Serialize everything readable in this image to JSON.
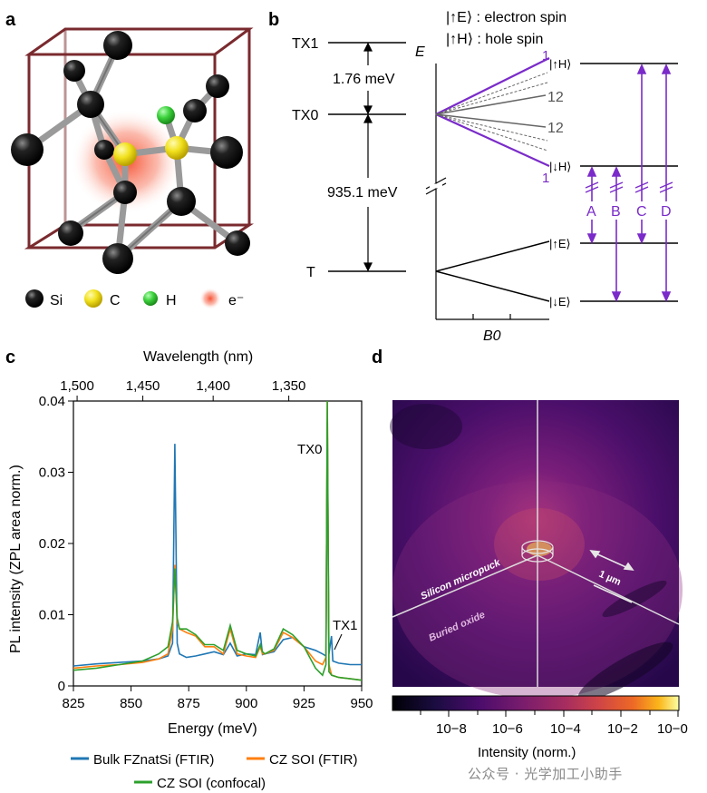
{
  "panels": {
    "a": "a",
    "b": "b",
    "c": "c",
    "d": "d"
  },
  "panel_a": {
    "legend": [
      {
        "label": "Si",
        "color": "#111111"
      },
      {
        "label": "C",
        "color": "#f1e11d"
      },
      {
        "label": "H",
        "color": "#3cd13c"
      },
      {
        "label": "e⁻",
        "color": "#f7694d"
      }
    ]
  },
  "panel_b": {
    "header_electron": "|↑E⟩ : electron spin",
    "header_hole": "|↑H⟩ : hole spin",
    "levels": {
      "tx1": "TX1",
      "tx0": "TX0",
      "t": "T"
    },
    "gap_small": "1.76 meV",
    "gap_large": "935.1 meV",
    "energy_axis": "E",
    "field_axis": "B0",
    "fan_labels": [
      "1",
      "12",
      "12",
      "1"
    ],
    "states": {
      "up_h": "|↑H⟩",
      "down_h": "|↓H⟩",
      "up_e": "|↑E⟩",
      "down_e": "|↓E⟩"
    },
    "transitions": [
      "A",
      "B",
      "C",
      "D"
    ],
    "accent": "#7a2bc9"
  },
  "chart_data": {
    "type": "line",
    "title": "",
    "xlabel": "Energy (meV)",
    "ylabel": "PL intensity (ZPL area norm.)",
    "top_xlabel": "Wavelength (nm)",
    "xlim": [
      825,
      950
    ],
    "ylim": [
      0,
      0.04
    ],
    "x_ticks": [
      "825",
      "850",
      "875",
      "900",
      "925",
      "950"
    ],
    "y_ticks": [
      "0",
      "0.01",
      "0.02",
      "0.03",
      "0.04"
    ],
    "top_ticks": [
      "1,500",
      "1,450",
      "1,400",
      "1,350"
    ],
    "top_tick_positions_meV": [
      826.6,
      855.1,
      885.6,
      918.4
    ],
    "annotations": [
      {
        "text": "TX0",
        "x": 935.1
      },
      {
        "text": "TX1",
        "x": 936.9
      }
    ],
    "series": [
      {
        "name": "Bulk FZnatSi (FTIR)",
        "color": "#1f77b4",
        "x": [
          825,
          835,
          845,
          855,
          862,
          866,
          868,
          869,
          870,
          871,
          874,
          878,
          882,
          886,
          890,
          893,
          896,
          900,
          904,
          906,
          907,
          908,
          912,
          916,
          920,
          925,
          930,
          933,
          934.5,
          935.1,
          935.8,
          936.9,
          937.5,
          940,
          945,
          950
        ],
        "values": [
          0.0028,
          0.0031,
          0.0033,
          0.0035,
          0.0038,
          0.0042,
          0.006,
          0.034,
          0.006,
          0.0045,
          0.004,
          0.0042,
          0.0045,
          0.0048,
          0.0044,
          0.006,
          0.0042,
          0.0045,
          0.0044,
          0.0075,
          0.0044,
          0.0045,
          0.0048,
          0.0065,
          0.0068,
          0.0055,
          0.005,
          0.0045,
          0.0042,
          0.037,
          0.0045,
          0.007,
          0.0035,
          0.0032,
          0.003,
          0.003
        ]
      },
      {
        "name": "CZ SOI (FTIR)",
        "color": "#ff7f0e",
        "x": [
          825,
          835,
          845,
          855,
          862,
          866,
          868,
          869,
          870,
          871,
          874,
          878,
          882,
          886,
          890,
          893,
          896,
          900,
          904,
          906,
          907,
          908,
          912,
          916,
          920,
          925,
          930,
          933,
          934.5,
          935.1,
          935.8,
          937,
          940,
          945,
          950
        ],
        "values": [
          0.0025,
          0.0028,
          0.003,
          0.0033,
          0.0038,
          0.0045,
          0.008,
          0.017,
          0.009,
          0.008,
          0.0075,
          0.007,
          0.0055,
          0.0055,
          0.0045,
          0.008,
          0.0045,
          0.0042,
          0.004,
          0.0055,
          0.0045,
          0.0045,
          0.005,
          0.0075,
          0.0068,
          0.0055,
          0.0035,
          0.003,
          0.004,
          0.04,
          0.003,
          0.0015,
          0.0012,
          0.001,
          0.0008
        ]
      },
      {
        "name": "CZ SOI (confocal)",
        "color": "#2ca02c",
        "x": [
          825,
          835,
          845,
          855,
          862,
          866,
          868,
          869,
          870,
          871,
          874,
          878,
          882,
          886,
          890,
          893,
          896,
          900,
          904,
          906,
          907,
          908,
          912,
          916,
          920,
          925,
          930,
          933,
          934.5,
          935.1,
          935.8,
          937,
          940,
          945,
          950
        ],
        "values": [
          0.0022,
          0.0025,
          0.003,
          0.0035,
          0.0045,
          0.0055,
          0.009,
          0.0165,
          0.0095,
          0.008,
          0.008,
          0.0072,
          0.0058,
          0.0058,
          0.005,
          0.0085,
          0.005,
          0.0045,
          0.0042,
          0.0058,
          0.0048,
          0.0045,
          0.0052,
          0.008,
          0.0072,
          0.0055,
          0.0025,
          0.0015,
          0.003,
          0.04,
          0.002,
          0.0015,
          0.0012,
          0.001,
          0.0008
        ]
      }
    ]
  },
  "panel_d": {
    "label_micropuck": "Silicon micropuck",
    "label_oxide": "Buried oxide",
    "scale_bar": "1 µm",
    "colorbar_label": "Intensity (norm.)",
    "colorbar_ticks": [
      "10−8",
      "10−6",
      "10−4",
      "10−2",
      "10−0"
    ]
  },
  "watermark": "公众号 · 光学加工小助手"
}
